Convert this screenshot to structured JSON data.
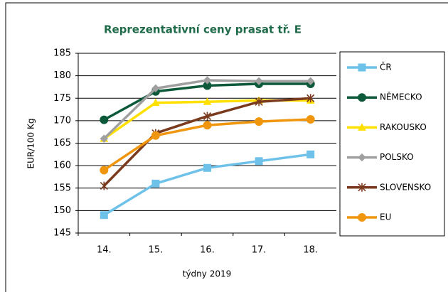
{
  "chart_data": {
    "type": "line",
    "title": "Reprezentativní  ceny prasat tř. E",
    "x_label": "týdny  2019",
    "y_label": "EUR/100 Kg",
    "categories": [
      "14.",
      "15.",
      "16.",
      "17.",
      "18."
    ],
    "series": [
      {
        "name": "ČR",
        "color": "#6ec1e8",
        "marker": "square",
        "values": [
          149,
          156,
          159.5,
          161,
          162.5
        ]
      },
      {
        "name": "NĚMECKO",
        "color": "#0d5a3a",
        "marker": "circle",
        "values": [
          170.2,
          176.5,
          177.8,
          178.2,
          178.2
        ]
      },
      {
        "name": "RAKOUSKO",
        "color": "#ffe000",
        "marker": "triangle",
        "values": [
          166,
          174,
          174.2,
          174.5,
          174.5
        ]
      },
      {
        "name": "POLSKO",
        "color": "#a0a0a0",
        "marker": "diamond",
        "values": [
          166,
          177.2,
          179,
          178.8,
          178.8
        ]
      },
      {
        "name": "SLOVENSKO",
        "color": "#7a3a1e",
        "marker": "star",
        "values": [
          155.5,
          167.2,
          171,
          174.2,
          175
        ]
      },
      {
        "name": "EU",
        "color": "#f0960e",
        "marker": "circle",
        "values": [
          159,
          166.7,
          169,
          169.8,
          170.3
        ]
      }
    ],
    "ylim": [
      145,
      185
    ],
    "yticks": [
      145,
      150,
      155,
      160,
      165,
      170,
      175,
      180,
      185
    ],
    "grid": true,
    "legend": "right"
  }
}
